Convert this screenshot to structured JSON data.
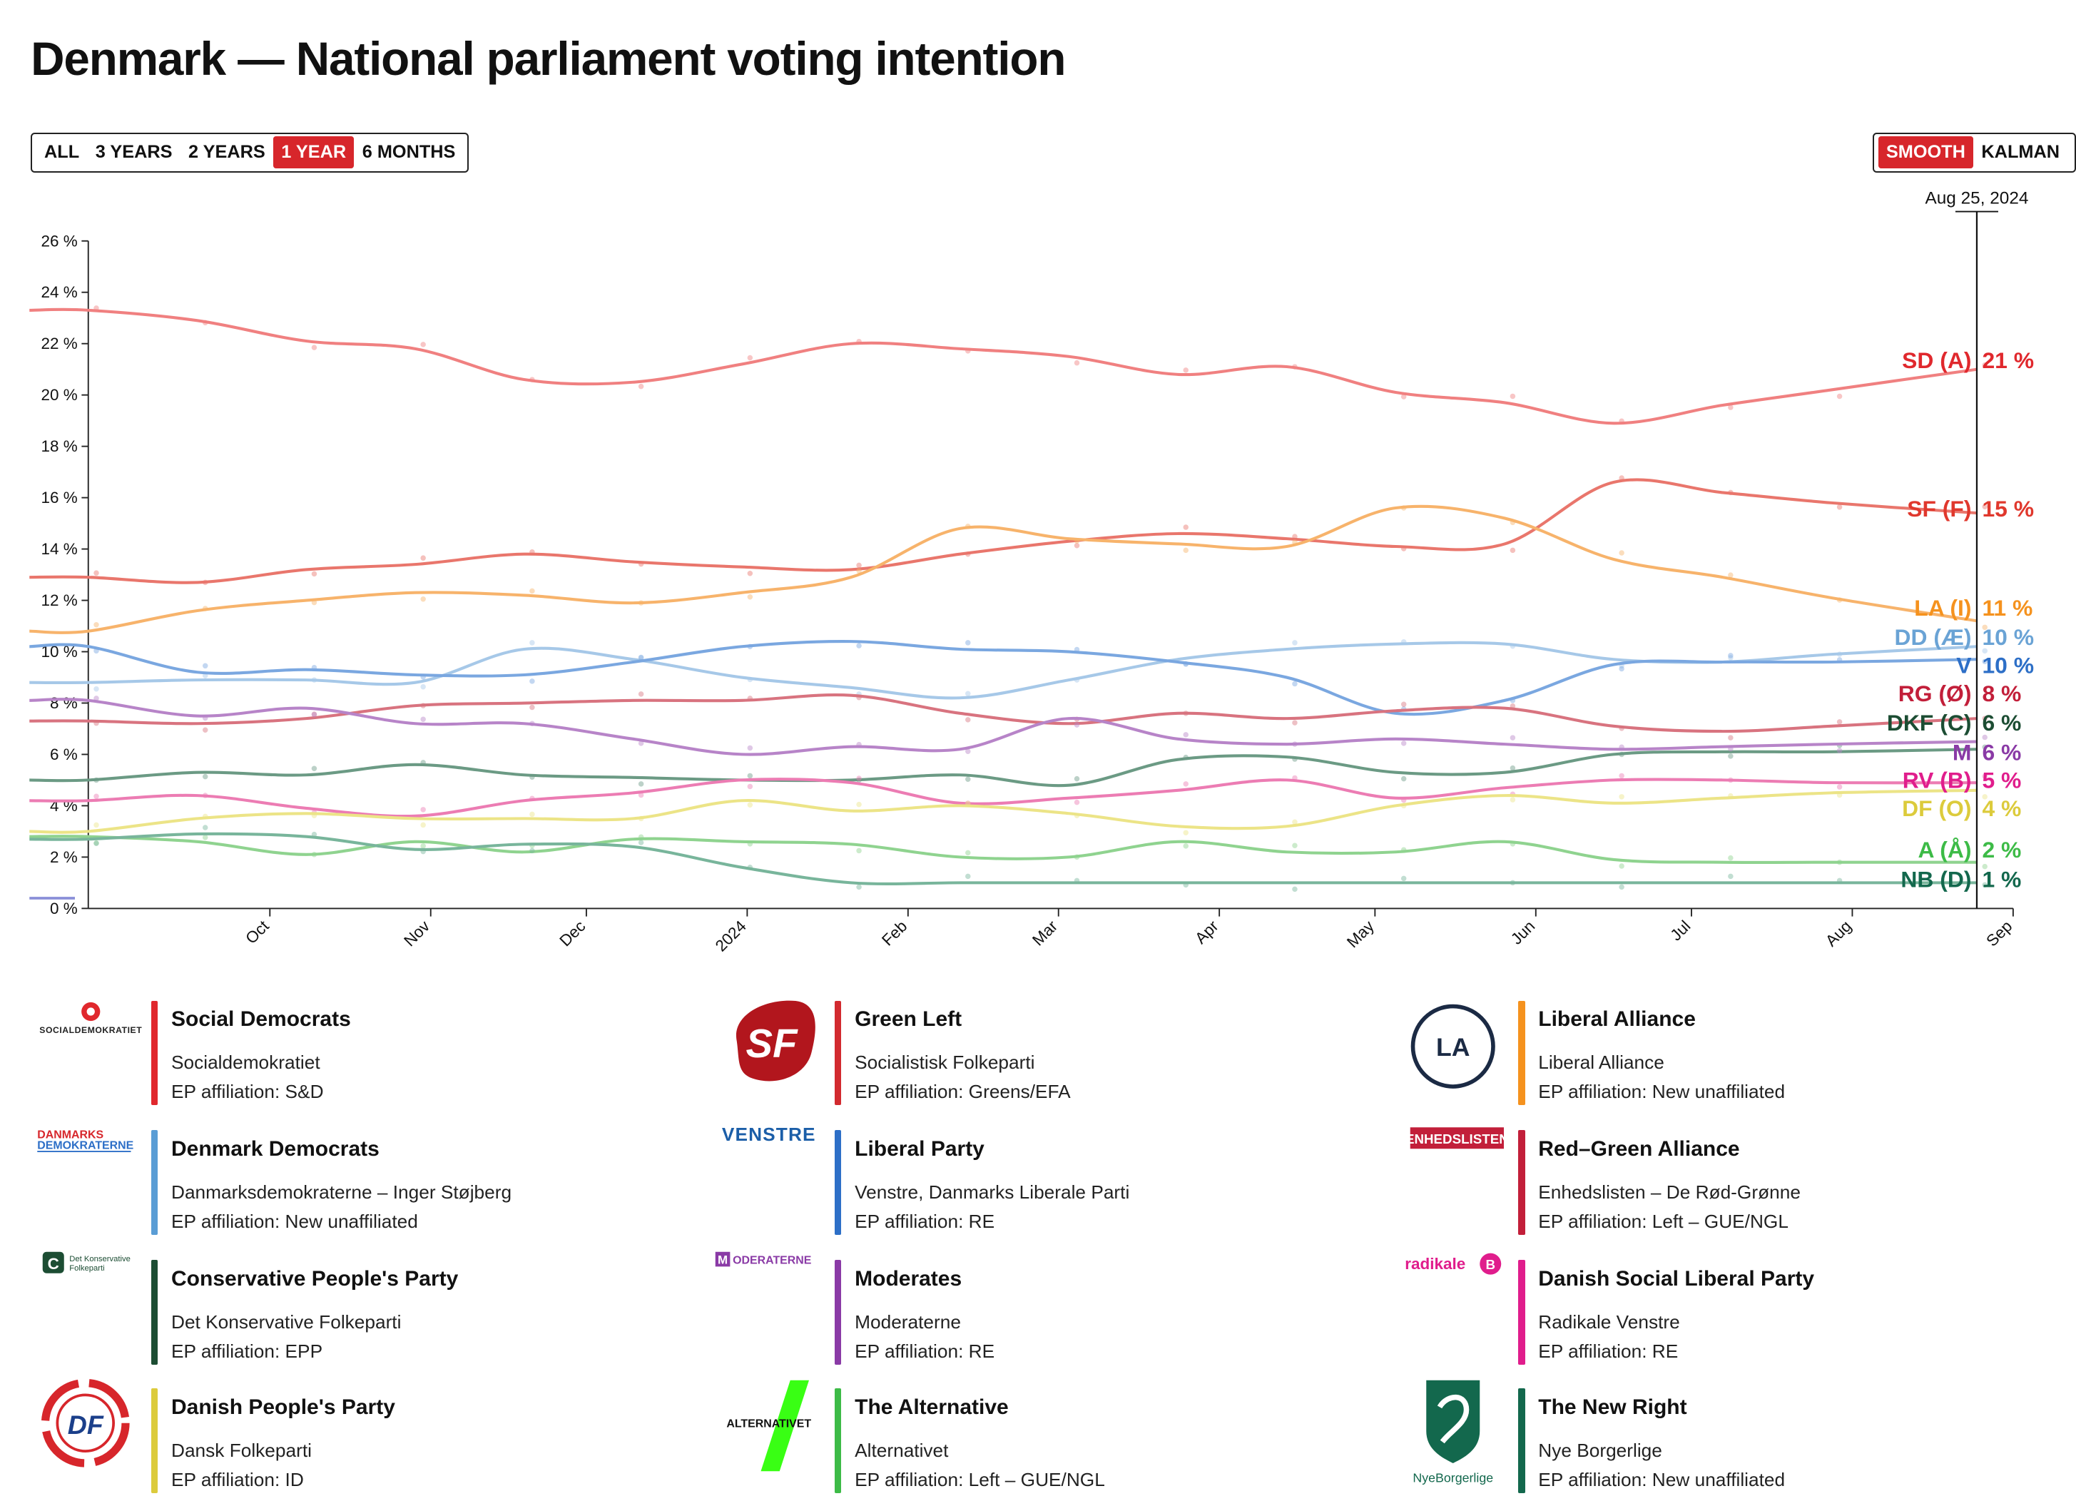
{
  "title": "Denmark — National parliament voting intention",
  "range_buttons": [
    {
      "label": "ALL",
      "active": false
    },
    {
      "label": "3 YEARS",
      "active": false
    },
    {
      "label": "2 YEARS",
      "active": false
    },
    {
      "label": "1 YEAR",
      "active": true
    },
    {
      "label": "6 MONTHS",
      "active": false
    }
  ],
  "mode_buttons": [
    {
      "label": "SMOOTH",
      "active": true
    },
    {
      "label": "KALMAN",
      "active": false
    }
  ],
  "accent_color": "#d7262b",
  "chart_data": {
    "type": "line",
    "title": "Denmark — National parliament voting intention",
    "xlabel": "",
    "ylabel": "",
    "x_range": [
      "2023-08-27",
      "2024-09-01"
    ],
    "ylim": [
      0,
      26
    ],
    "y_ticks": [
      0,
      2,
      4,
      6,
      8,
      10,
      12,
      14,
      16,
      18,
      20,
      22,
      24,
      26
    ],
    "y_tick_labels": [
      "0 %",
      "2 %",
      "4 %",
      "6 %",
      "8 %",
      "10 %",
      "12 %",
      "14 %",
      "16 %",
      "18 %",
      "20 %",
      "22 %",
      "24 %",
      "26 %"
    ],
    "x_tick_labels": [
      {
        "date": "2023-10-01",
        "label": "Oct"
      },
      {
        "date": "2023-11-01",
        "label": "Nov"
      },
      {
        "date": "2023-12-01",
        "label": "Dec"
      },
      {
        "date": "2024-01-01",
        "label": "2024"
      },
      {
        "date": "2024-02-01",
        "label": "Feb"
      },
      {
        "date": "2024-03-01",
        "label": "Mar"
      },
      {
        "date": "2024-04-01",
        "label": "Apr"
      },
      {
        "date": "2024-05-01",
        "label": "May"
      },
      {
        "date": "2024-06-01",
        "label": "Jun"
      },
      {
        "date": "2024-07-01",
        "label": "Jul"
      },
      {
        "date": "2024-08-01",
        "label": "Aug"
      },
      {
        "date": "2024-09-01",
        "label": "Sep"
      }
    ],
    "cursor": {
      "date": "2024-08-25",
      "label": "Aug 25, 2024"
    },
    "grid": false,
    "legend": "right-end labels",
    "x": [
      "2023-08-27",
      "2023-09-17",
      "2023-10-08",
      "2023-10-29",
      "2023-11-19",
      "2023-12-10",
      "2023-12-31",
      "2024-01-21",
      "2024-02-11",
      "2024-03-03",
      "2024-03-24",
      "2024-04-14",
      "2024-05-05",
      "2024-05-26",
      "2024-06-16",
      "2024-07-07",
      "2024-07-28",
      "2024-08-25"
    ],
    "series": [
      {
        "name": "SD (A)",
        "value_label": "21 %",
        "color": "#f08080",
        "label_color": "#e0282d",
        "values": [
          23.3,
          22.9,
          22.1,
          21.8,
          20.6,
          20.5,
          21.2,
          22.0,
          21.8,
          21.5,
          20.8,
          21.1,
          20.1,
          19.7,
          18.9,
          19.6,
          20.2,
          21.0
        ]
      },
      {
        "name": "SF (F)",
        "value_label": "15 %",
        "color": "#e9766c",
        "label_color": "#e0382d",
        "values": [
          12.9,
          12.7,
          13.2,
          13.4,
          13.8,
          13.5,
          13.3,
          13.2,
          13.8,
          14.3,
          14.6,
          14.4,
          14.1,
          14.2,
          16.6,
          16.2,
          15.8,
          15.4
        ]
      },
      {
        "name": "LA (I)",
        "value_label": "11 %",
        "color": "#f7b36b",
        "label_color": "#f5921e",
        "values": [
          10.8,
          11.6,
          12.0,
          12.3,
          12.2,
          11.9,
          12.3,
          12.9,
          14.8,
          14.4,
          14.2,
          14.1,
          15.6,
          15.2,
          13.6,
          12.9,
          12.1,
          11.2
        ]
      },
      {
        "name": "DD (Æ)",
        "value_label": "10 %",
        "color": "#a6c8e8",
        "label_color": "#6aa3d5",
        "values": [
          8.8,
          8.9,
          8.9,
          8.8,
          10.1,
          9.7,
          9.0,
          8.6,
          8.2,
          8.9,
          9.7,
          10.1,
          10.3,
          10.3,
          9.7,
          9.6,
          9.9,
          10.2
        ]
      },
      {
        "name": "V",
        "value_label": "10 %",
        "color": "#7aa7e0",
        "label_color": "#2d6fc7",
        "values": [
          10.2,
          9.2,
          9.3,
          9.1,
          9.1,
          9.6,
          10.2,
          10.4,
          10.1,
          10.0,
          9.6,
          9.0,
          7.6,
          8.1,
          9.5,
          9.6,
          9.6,
          9.7
        ]
      },
      {
        "name": "RG (Ø)",
        "value_label": "8 %",
        "color": "#d8737f",
        "label_color": "#c21f3a",
        "values": [
          7.3,
          7.2,
          7.4,
          7.9,
          8.0,
          8.1,
          8.1,
          8.3,
          7.6,
          7.2,
          7.6,
          7.4,
          7.7,
          7.8,
          7.1,
          6.9,
          7.1,
          7.4
        ]
      },
      {
        "name": "DKF (C)",
        "value_label": "6 %",
        "color": "#6b9a84",
        "label_color": "#1c4d33",
        "values": [
          5.0,
          5.3,
          5.2,
          5.6,
          5.2,
          5.1,
          5.0,
          5.0,
          5.2,
          4.8,
          5.8,
          5.9,
          5.3,
          5.3,
          6.0,
          6.1,
          6.1,
          6.2
        ]
      },
      {
        "name": "M",
        "value_label": "6 %",
        "color": "#b784c8",
        "label_color": "#8a3aa6",
        "values": [
          8.1,
          7.5,
          7.8,
          7.2,
          7.2,
          6.6,
          6.0,
          6.3,
          6.2,
          7.4,
          6.6,
          6.4,
          6.6,
          6.4,
          6.2,
          6.3,
          6.4,
          6.5
        ]
      },
      {
        "name": "RV (B)",
        "value_label": "5 %",
        "color": "#ec7cb3",
        "label_color": "#e01d8c",
        "values": [
          4.2,
          4.4,
          3.9,
          3.6,
          4.2,
          4.5,
          5.0,
          4.9,
          4.1,
          4.3,
          4.6,
          5.0,
          4.3,
          4.7,
          5.0,
          5.0,
          4.9,
          4.9
        ]
      },
      {
        "name": "DF (O)",
        "value_label": "4 %",
        "color": "#ece487",
        "label_color": "#dccb3c",
        "values": [
          3.0,
          3.5,
          3.7,
          3.5,
          3.5,
          3.5,
          4.2,
          3.8,
          4.0,
          3.7,
          3.2,
          3.2,
          4.0,
          4.4,
          4.1,
          4.3,
          4.5,
          4.6
        ]
      },
      {
        "name": "A (Å)",
        "value_label": "2 %",
        "color": "#8fd38f",
        "label_color": "#3dbb47",
        "values": [
          2.8,
          2.6,
          2.1,
          2.6,
          2.2,
          2.7,
          2.6,
          2.5,
          2.0,
          2.0,
          2.6,
          2.2,
          2.2,
          2.6,
          1.9,
          1.8,
          1.8,
          1.8
        ]
      },
      {
        "name": "NB (D)",
        "value_label": "1 %",
        "color": "#78b59b",
        "label_color": "#13684d",
        "values": [
          2.7,
          2.9,
          2.8,
          2.3,
          2.5,
          2.4,
          1.6,
          1.0,
          1.0,
          1.0,
          1.0,
          1.0,
          1.0,
          1.0,
          1.0,
          1.0,
          1.0,
          1.0
        ]
      }
    ]
  },
  "legend": [
    {
      "name": "Social Democrats",
      "native": "Socialdemokratiet",
      "ep": "EP affiliation: S&D",
      "color": "#e0282d",
      "logo": "socialdemokratiet-rose-logo",
      "logo_text": "SOCIALDEMOKRATIET"
    },
    {
      "name": "Green Left",
      "native": "Socialistisk Folkeparti",
      "ep": "EP affiliation: Greens/EFA",
      "color": "#d22a2f",
      "logo": "sf-logo",
      "logo_text": "SF"
    },
    {
      "name": "Liberal Alliance",
      "native": "Liberal Alliance",
      "ep": "EP affiliation: New unaffiliated",
      "color": "#f5921e",
      "logo": "la-circle-logo",
      "logo_text": "LA"
    },
    {
      "name": "Denmark Democrats",
      "native": "Danmarksdemokraterne – Inger Støjberg",
      "ep": "EP affiliation: New unaffiliated",
      "color": "#5a9dd5",
      "logo": "danmarksdemokraterne-logo",
      "logo_text": "DANMARKS DEMOKRATERNE"
    },
    {
      "name": "Liberal Party",
      "native": "Venstre, Danmarks Liberale Parti",
      "ep": "EP affiliation: RE",
      "color": "#2d6fc7",
      "logo": "venstre-logo",
      "logo_text": "VENSTRE"
    },
    {
      "name": "Red–Green Alliance",
      "native": "Enhedslisten – De Rød-Grønne",
      "ep": "EP affiliation: Left – GUE/NGL",
      "color": "#c21f3a",
      "logo": "enhedslisten-logo",
      "logo_text": "ENHEDSLISTEN"
    },
    {
      "name": "Conservative People's Party",
      "native": "Det Konservative Folkeparti",
      "ep": "EP affiliation: EPP",
      "color": "#1c4d33",
      "logo": "konservative-logo",
      "logo_text": "Det Konservative Folkeparti"
    },
    {
      "name": "Moderates",
      "native": "Moderaterne",
      "ep": "EP affiliation: RE",
      "color": "#8a3aa6",
      "logo": "moderaterne-logo",
      "logo_text": "MODERATERNE"
    },
    {
      "name": "Danish Social Liberal Party",
      "native": "Radikale Venstre",
      "ep": "EP affiliation: RE",
      "color": "#e01d8c",
      "logo": "radikale-logo",
      "logo_text": "radikale"
    },
    {
      "name": "Danish People's Party",
      "native": "Dansk Folkeparti",
      "ep": "EP affiliation: ID",
      "color": "#dccb3c",
      "logo": "df-logo",
      "logo_text": "DF"
    },
    {
      "name": "The Alternative",
      "native": "Alternativet",
      "ep": "EP affiliation: Left – GUE/NGL",
      "color": "#3dbb47",
      "logo": "alternativet-logo",
      "logo_text": "ALTERNATIVET"
    },
    {
      "name": "The New Right",
      "native": "Nye Borgerlige",
      "ep": "EP affiliation: New unaffiliated",
      "color": "#13684d",
      "logo": "nyeborgerlige-logo",
      "logo_text": "NyeBorgerlige"
    }
  ]
}
